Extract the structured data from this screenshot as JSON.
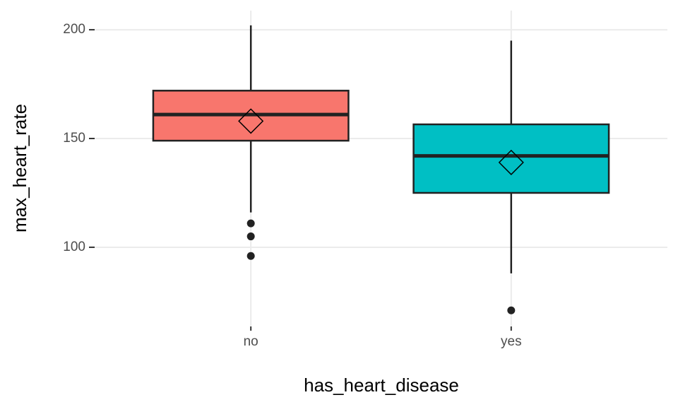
{
  "chart_data": {
    "type": "box",
    "x_label": "has_heart_disease",
    "y_label": "max_heart_rate",
    "categories": [
      "no",
      "yes"
    ],
    "boxes": [
      {
        "color": "#f8766d",
        "whisker_low": 116,
        "q1": 149,
        "median": 161,
        "q3": 172,
        "whisker_high": 202,
        "mean": 158,
        "outliers": [
          111,
          105,
          96
        ]
      },
      {
        "color": "#00bfc4",
        "whisker_low": 88,
        "q1": 125,
        "median": 142,
        "q3": 156.5,
        "whisker_high": 195,
        "mean": 139,
        "outliers": [
          71
        ]
      }
    ],
    "ylim": [
      63.6,
      208.8
    ],
    "yticks": [
      100,
      150,
      200
    ],
    "grid": true
  }
}
